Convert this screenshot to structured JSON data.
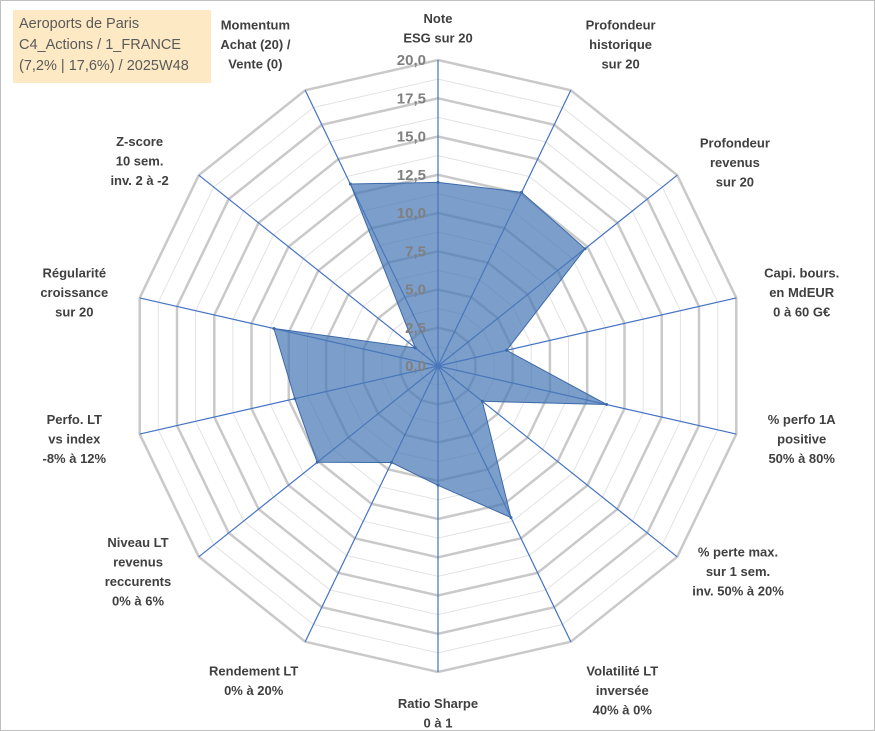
{
  "title_box": {
    "lines": [
      "Aeroports de Paris",
      "C4_Actions / 1_FRANCE",
      "(7,2% | 17,6%) / 2025W48"
    ]
  },
  "chart_data": {
    "type": "radar",
    "r_min": 0,
    "r_max": 20,
    "r_ticks": [
      0,
      2.5,
      5,
      7.5,
      10,
      12.5,
      15,
      17.5,
      20
    ],
    "r_tick_labels": [
      "0,0",
      "2,5",
      "5,0",
      "7,5",
      "10,0",
      "12,5",
      "15,0",
      "17,5",
      "20,0"
    ],
    "axes": [
      {
        "label": [
          "Note",
          "ESG sur 20"
        ],
        "value": 12.0
      },
      {
        "label": [
          "Profondeur",
          "historique",
          "sur 20"
        ],
        "value": 12.6
      },
      {
        "label": [
          "Profondeur",
          "revenus",
          "sur 20"
        ],
        "value": 12.3
      },
      {
        "label": [
          "Capi. bours.",
          "en MdEUR",
          "0 à 60 G€"
        ],
        "value": 4.6
      },
      {
        "label": [
          "% perfo 1A",
          "positive",
          "50% à 80%"
        ],
        "value": 11.3
      },
      {
        "label": [
          "% perte max.",
          "sur 1 sem.",
          "inv. 50% à 20%"
        ],
        "value": 3.7
      },
      {
        "label": [
          "Volatilité LT",
          "inversée",
          "40% à 0%"
        ],
        "value": 11.0
      },
      {
        "label": [
          "Ratio Sharpe",
          "0 à 1"
        ],
        "value": 7.8
      },
      {
        "label": [
          "Rendement LT",
          "0% à 20%"
        ],
        "value": 7.0
      },
      {
        "label": [
          "Niveau LT",
          "revenus",
          "reccurents",
          "0% à 6%"
        ],
        "value": 10.1
      },
      {
        "label": [
          "Perfo. LT",
          "vs index",
          "-8% à 12%"
        ],
        "value": 9.6
      },
      {
        "label": [
          "Régularité",
          "croissance",
          "sur 20"
        ],
        "value": 11.0
      },
      {
        "label": [
          "Z-score",
          "10 sem.",
          "inv. 2 à -2"
        ],
        "value": 1.9
      },
      {
        "label": [
          "Momentum",
          "Achat (20) /",
          "Vente (0)"
        ],
        "value": 13.2
      }
    ],
    "colors": {
      "fill": "#4a78b6",
      "fill_opacity": 0.72,
      "stroke": "#3c6aa8",
      "spoke": "#4472c4",
      "major_grid": "#c9c9c9",
      "minor_grid": "#e3e3e3",
      "label": "#404040",
      "tick": "#808080"
    }
  }
}
